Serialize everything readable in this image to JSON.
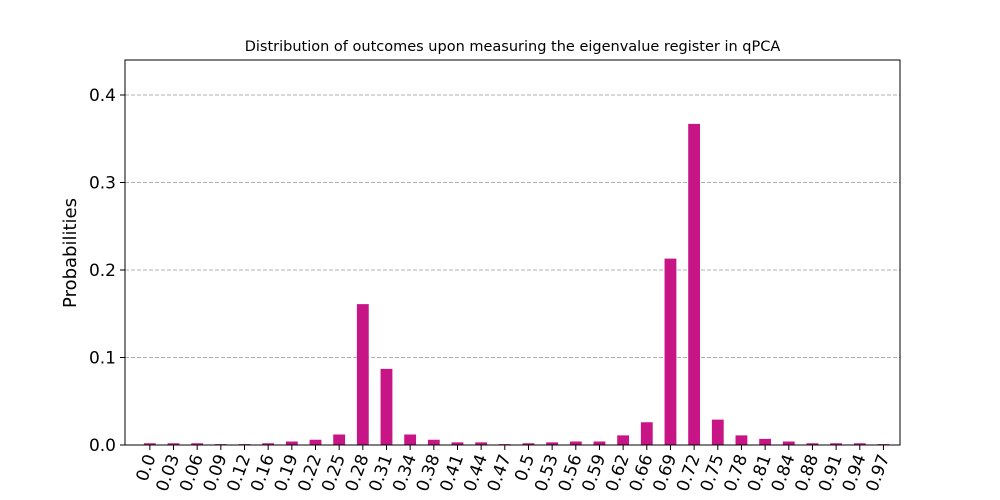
{
  "chart_data": {
    "type": "bar",
    "title": "Distribution of outcomes upon measuring the eigenvalue register in qPCA",
    "xlabel": "",
    "ylabel": "Probabilities",
    "categories": [
      "0.0",
      "0.03",
      "0.06",
      "0.09",
      "0.12",
      "0.16",
      "0.19",
      "0.22",
      "0.25",
      "0.28",
      "0.31",
      "0.34",
      "0.38",
      "0.41",
      "0.44",
      "0.47",
      "0.5",
      "0.53",
      "0.56",
      "0.59",
      "0.62",
      "0.66",
      "0.69",
      "0.72",
      "0.75",
      "0.78",
      "0.81",
      "0.84",
      "0.88",
      "0.91",
      "0.94",
      "0.97"
    ],
    "values": [
      0.002,
      0.002,
      0.002,
      0.001,
      0.001,
      0.002,
      0.004,
      0.006,
      0.012,
      0.161,
      0.087,
      0.012,
      0.006,
      0.003,
      0.003,
      0.001,
      0.002,
      0.003,
      0.004,
      0.004,
      0.011,
      0.026,
      0.213,
      0.367,
      0.029,
      0.011,
      0.007,
      0.004,
      0.002,
      0.002,
      0.002,
      0.001
    ],
    "yticks": [
      "0.0",
      "0.1",
      "0.2",
      "0.3",
      "0.4"
    ],
    "ylim": [
      0,
      0.44
    ],
    "grid": "y-dashed",
    "legend": "none",
    "bar_color": "#c71585",
    "grid_color": "#b0b0b0"
  }
}
